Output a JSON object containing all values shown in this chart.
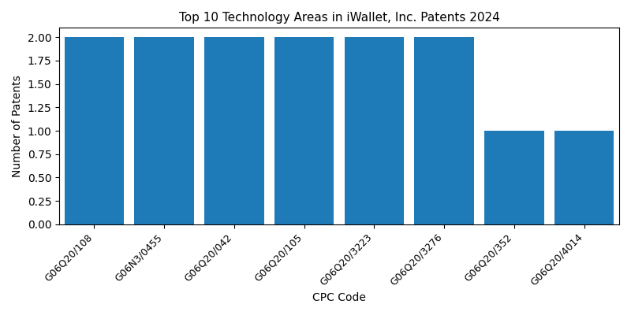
{
  "title": "Top 10 Technology Areas in iWallet, Inc. Patents 2024",
  "xlabel": "CPC Code",
  "ylabel": "Number of Patents",
  "categories": [
    "G06Q20/108",
    "G06N3/0455",
    "G06Q20/042",
    "G06Q20/105",
    "G06Q20/3223",
    "G06Q20/3276",
    "G06Q20/352",
    "G06Q20/4014"
  ],
  "values": [
    2,
    2,
    2,
    2,
    2,
    2,
    1,
    1
  ],
  "bar_color": "#1f7ab8",
  "bar_width": 0.85,
  "ylim": [
    0,
    2.1
  ],
  "yticks": [
    0.0,
    0.25,
    0.5,
    0.75,
    1.0,
    1.25,
    1.5,
    1.75,
    2.0
  ],
  "figsize": [
    8.0,
    4.0
  ],
  "dpi": 100,
  "title_fontsize": 11,
  "axis_label_fontsize": 10,
  "tick_fontsize": 9,
  "show_top_spine": true,
  "show_right_spine": true
}
